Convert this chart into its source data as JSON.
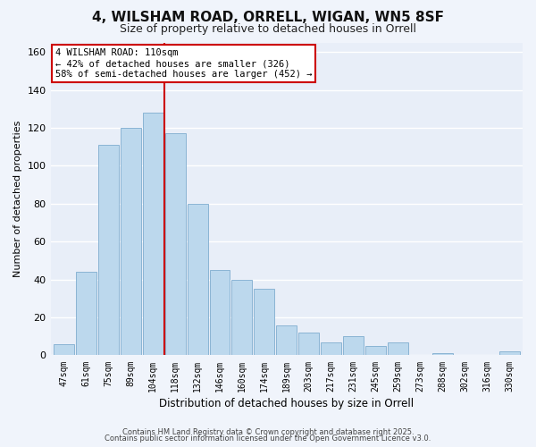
{
  "title": "4, WILSHAM ROAD, ORRELL, WIGAN, WN5 8SF",
  "subtitle": "Size of property relative to detached houses in Orrell",
  "xlabel": "Distribution of detached houses by size in Orrell",
  "ylabel": "Number of detached properties",
  "categories": [
    "47sqm",
    "61sqm",
    "75sqm",
    "89sqm",
    "104sqm",
    "118sqm",
    "132sqm",
    "146sqm",
    "160sqm",
    "174sqm",
    "189sqm",
    "203sqm",
    "217sqm",
    "231sqm",
    "245sqm",
    "259sqm",
    "273sqm",
    "288sqm",
    "302sqm",
    "316sqm",
    "330sqm"
  ],
  "values": [
    6,
    44,
    111,
    120,
    128,
    117,
    80,
    45,
    40,
    35,
    16,
    12,
    7,
    10,
    5,
    7,
    0,
    1,
    0,
    0,
    2
  ],
  "bar_color": "#bcd8ed",
  "bar_edge_color": "#8ab4d4",
  "vline_x_index": 4.5,
  "vline_color": "#cc0000",
  "annotation_title": "4 WILSHAM ROAD: 110sqm",
  "annotation_line1": "← 42% of detached houses are smaller (326)",
  "annotation_line2": "58% of semi-detached houses are larger (452) →",
  "annotation_box_color": "#ffffff",
  "annotation_box_edge": "#cc0000",
  "ylim": [
    0,
    165
  ],
  "yticks": [
    0,
    20,
    40,
    60,
    80,
    100,
    120,
    140,
    160
  ],
  "plot_bg_color": "#e8eef8",
  "fig_bg_color": "#f0f4fb",
  "footer_line1": "Contains HM Land Registry data © Crown copyright and database right 2025.",
  "footer_line2": "Contains public sector information licensed under the Open Government Licence v3.0."
}
